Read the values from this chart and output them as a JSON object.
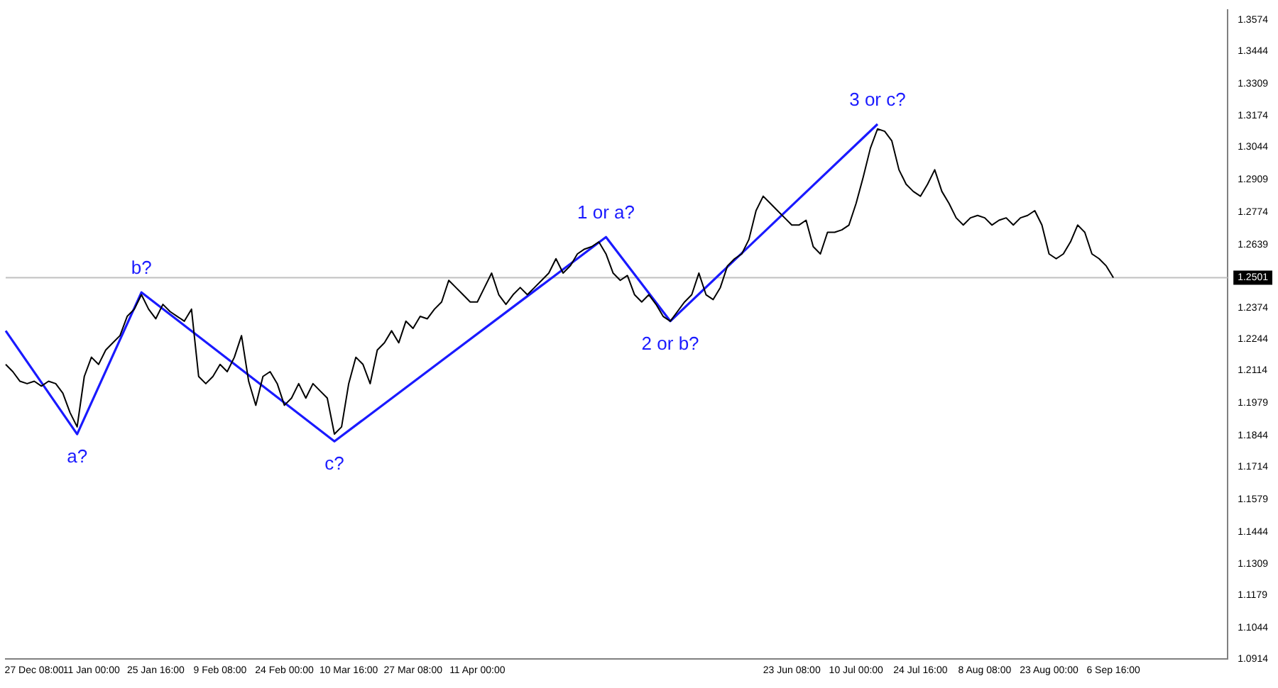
{
  "chart_data": {
    "type": "line",
    "categories": [
      null,
      null,
      null,
      null,
      "27 Dec 08:00",
      null,
      null,
      null,
      null,
      null,
      null,
      null,
      "11 Jan 00:00",
      null,
      null,
      null,
      null,
      null,
      null,
      null,
      null,
      "25 Jan 16:00",
      null,
      null,
      null,
      null,
      null,
      null,
      null,
      null,
      "9 Feb 08:00",
      null,
      null,
      null,
      null,
      null,
      null,
      null,
      null,
      "24 Feb 00:00",
      null,
      null,
      null,
      null,
      null,
      null,
      null,
      null,
      "10 Mar 16:00",
      null,
      null,
      null,
      null,
      null,
      null,
      null,
      null,
      "27 Mar 08:00",
      null,
      null,
      null,
      null,
      null,
      null,
      null,
      null,
      "11 Apr 00:00",
      null,
      null,
      null,
      null,
      null,
      null,
      null,
      null,
      null,
      null,
      null,
      null,
      null,
      null,
      null,
      null,
      null,
      null,
      null,
      null,
      null,
      null,
      null,
      null,
      null,
      null,
      null,
      null,
      null,
      null,
      null,
      null,
      null,
      null,
      null,
      null,
      null,
      null,
      null,
      null,
      null,
      null,
      null,
      "23 Jun 08:00",
      null,
      null,
      null,
      null,
      null,
      null,
      null,
      null,
      "10 Jul 00:00",
      null,
      null,
      null,
      null,
      null,
      null,
      null,
      null,
      "24 Jul 16:00",
      null,
      null,
      null,
      null,
      null,
      null,
      null,
      null,
      "8 Aug 08:00",
      null,
      null,
      null,
      null,
      null,
      null,
      null,
      null,
      "23 Aug 00:00",
      null,
      null,
      null,
      null,
      null,
      null,
      null,
      null,
      "6 Sep 16:00",
      null,
      null,
      null,
      null,
      null,
      null,
      null,
      null,
      null,
      null,
      null,
      null,
      null,
      null,
      null,
      null
    ],
    "series": [
      {
        "color": "#000000",
        "values": [
          1.214,
          1.211,
          1.207,
          1.206,
          1.207,
          1.205,
          1.207,
          1.206,
          1.202,
          1.194,
          1.188,
          1.209,
          1.217,
          1.214,
          1.22,
          1.223,
          1.226,
          1.234,
          1.237,
          1.243,
          1.237,
          1.233,
          1.239,
          1.236,
          1.234,
          1.232,
          1.237,
          1.209,
          1.206,
          1.209,
          1.214,
          1.211,
          1.217,
          1.226,
          1.207,
          1.197,
          1.209,
          1.211,
          1.206,
          1.197,
          1.2,
          1.206,
          1.2,
          1.206,
          1.203,
          1.2,
          1.185,
          1.188,
          1.206,
          1.217,
          1.214,
          1.206,
          1.22,
          1.223,
          1.228,
          1.223,
          1.232,
          1.229,
          1.234,
          1.233,
          1.237,
          1.24,
          1.249,
          1.246,
          1.243,
          1.24,
          1.24,
          1.246,
          1.252,
          1.243,
          1.239,
          1.243,
          1.246,
          1.243,
          1.246,
          1.249,
          1.252,
          1.258,
          1.252,
          1.255,
          1.26,
          1.262,
          1.263,
          1.265,
          1.26,
          1.252,
          1.249,
          1.251,
          1.243,
          1.24,
          1.243,
          1.239,
          1.234,
          1.232,
          1.236,
          1.24,
          1.243,
          1.252,
          1.243,
          1.241,
          1.246,
          1.255,
          1.258,
          1.26,
          1.266,
          1.278,
          1.284,
          1.281,
          1.278,
          1.275,
          1.272,
          1.272,
          1.274,
          1.263,
          1.26,
          1.269,
          1.269,
          1.27,
          1.272,
          1.281,
          1.292,
          1.304,
          1.312,
          1.311,
          1.307,
          1.295,
          1.289,
          1.286,
          1.284,
          1.289,
          1.295,
          1.286,
          1.281,
          1.275,
          1.272,
          1.275,
          1.276,
          1.275,
          1.272,
          1.274,
          1.275,
          1.272,
          1.275,
          1.276,
          1.278,
          1.272,
          1.26,
          1.258,
          1.26,
          1.265,
          1.272,
          1.269,
          1.26,
          1.258,
          1.255,
          1.2501,
          null,
          null,
          null,
          null,
          null,
          null,
          null,
          null,
          null,
          null,
          null,
          null,
          null,
          null,
          null,
          null
        ]
      },
      {
        "color": "#1a1aff",
        "values": [
          1.228,
          null,
          null,
          null,
          null,
          null,
          null,
          null,
          null,
          null,
          1.185,
          null,
          null,
          null,
          null,
          null,
          null,
          null,
          null,
          1.244,
          null,
          null,
          null,
          null,
          null,
          null,
          null,
          null,
          null,
          null,
          null,
          null,
          null,
          null,
          null,
          null,
          null,
          null,
          null,
          null,
          null,
          null,
          null,
          null,
          null,
          null,
          1.182,
          null,
          null,
          null,
          null,
          null,
          null,
          null,
          null,
          null,
          null,
          null,
          null,
          null,
          null,
          null,
          null,
          null,
          null,
          null,
          null,
          null,
          null,
          null,
          null,
          null,
          null,
          null,
          null,
          null,
          null,
          null,
          null,
          null,
          null,
          null,
          null,
          null,
          1.267,
          null,
          null,
          null,
          null,
          null,
          null,
          null,
          null,
          1.232,
          null,
          null,
          null,
          null,
          null,
          null,
          null,
          null,
          null,
          null,
          null,
          null,
          null,
          null,
          null,
          null,
          null,
          null,
          null,
          null,
          null,
          null,
          null,
          null,
          null,
          null,
          null,
          null,
          1.314,
          null,
          null,
          null,
          null,
          null,
          null,
          null,
          null,
          null,
          null,
          null,
          null,
          null,
          null,
          null,
          null,
          null,
          null,
          null,
          null,
          null,
          null,
          null,
          null,
          null,
          null,
          null,
          null,
          null,
          null,
          null,
          null,
          null,
          null,
          null,
          null,
          null,
          null,
          null,
          null,
          null,
          null,
          null,
          null,
          null,
          null,
          null,
          null,
          null
        ]
      }
    ],
    "annotations": [
      {
        "text": "a?",
        "y": 1.185
      },
      {
        "text": "b?",
        "y": 1.244
      },
      {
        "text": "c?",
        "y": 1.182
      },
      {
        "text": "1 or a?",
        "y": 1.267
      },
      {
        "text": "2 or b?",
        "y": 1.232
      },
      {
        "text": "3 or c?",
        "y": 1.314
      }
    ],
    "ylim": [
      1.0914,
      1.3614
    ],
    "yticks": [
      1.3574,
      1.3444,
      1.3309,
      1.3174,
      1.3044,
      1.2909,
      1.2774,
      1.2639,
      1.2374,
      1.2244,
      1.2114,
      1.1979,
      1.1844,
      1.1714,
      1.1579,
      1.1444,
      1.1309,
      1.1179,
      1.1044,
      1.0914
    ],
    "ref_lines": [
      {
        "axis": "y",
        "value": 1.2501,
        "label": "1.2501",
        "color": "#c0c0c0"
      }
    ],
    "grid": false,
    "legend": false,
    "marker": "none",
    "line_style": "solid"
  }
}
